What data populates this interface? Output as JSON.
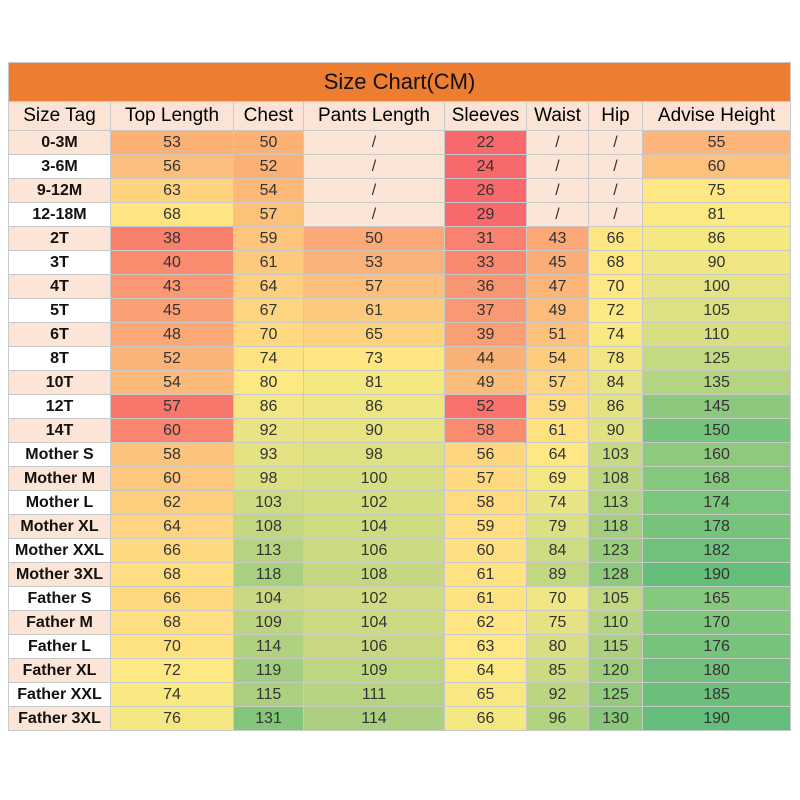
{
  "title": "Size Chart(CM)",
  "headers": [
    "Size Tag",
    "Top Length",
    "Chest",
    "Pants Length",
    "Sleeves",
    "Waist",
    "Hip",
    "Advise Height"
  ],
  "rows": [
    {
      "cells": [
        "0-3M",
        "53",
        "50",
        "/",
        "22",
        "/",
        "/",
        "55"
      ],
      "colors": [
        "#fce4d6",
        "#fbb074",
        "#fbb074",
        "#fce4d6",
        "#f8696b",
        "#fce4d6",
        "#fce4d6",
        "#fcb57b"
      ]
    },
    {
      "cells": [
        "3-6M",
        "56",
        "52",
        "/",
        "24",
        "/",
        "/",
        "60"
      ],
      "colors": [
        "#ffffff",
        "#fcbe7c",
        "#fbb074",
        "#fce4d6",
        "#f8696b",
        "#fce4d6",
        "#fce4d6",
        "#fdc07d"
      ]
    },
    {
      "cells": [
        "9-12M",
        "63",
        "54",
        "/",
        "26",
        "/",
        "/",
        "75"
      ],
      "colors": [
        "#fce4d6",
        "#fed37f",
        "#fcb877",
        "#fce4d6",
        "#f8696b",
        "#fce4d6",
        "#fce4d6",
        "#ffe883"
      ]
    },
    {
      "cells": [
        "12-18M",
        "68",
        "57",
        "/",
        "29",
        "/",
        "/",
        "81"
      ],
      "colors": [
        "#ffffff",
        "#ffe483",
        "#fcc27a",
        "#fce4d6",
        "#f8696b",
        "#fce4d6",
        "#fce4d6",
        "#fbe983"
      ]
    },
    {
      "cells": [
        "2T",
        "38",
        "59",
        "50",
        "31",
        "43",
        "66",
        "86"
      ],
      "colors": [
        "#fce4d6",
        "#f8816d",
        "#fcc47c",
        "#fbaa77",
        "#f8826f",
        "#fba776",
        "#fee683",
        "#f5e883"
      ]
    },
    {
      "cells": [
        "3T",
        "40",
        "61",
        "53",
        "33",
        "45",
        "68",
        "90"
      ],
      "colors": [
        "#ffffff",
        "#f98c6f",
        "#fcc97d",
        "#fbb278",
        "#f98a70",
        "#fbad77",
        "#ffe883",
        "#f0e683"
      ]
    },
    {
      "cells": [
        "4T",
        "43",
        "64",
        "57",
        "36",
        "47",
        "70",
        "100"
      ],
      "colors": [
        "#fce4d6",
        "#fa9873",
        "#fdcf7e",
        "#fcbe7b",
        "#f99672",
        "#fcb578",
        "#ffe883",
        "#e5e383"
      ]
    },
    {
      "cells": [
        "5T",
        "45",
        "67",
        "61",
        "37",
        "49",
        "72",
        "105"
      ],
      "colors": [
        "#ffffff",
        "#fb9f75",
        "#fdd47f",
        "#fdc97d",
        "#f99973",
        "#fcbb79",
        "#fde983",
        "#ddE183"
      ]
    },
    {
      "cells": [
        "6T",
        "48",
        "70",
        "65",
        "39",
        "51",
        "74",
        "110"
      ],
      "colors": [
        "#fce4d6",
        "#fba877",
        "#fed980",
        "#fdd37f",
        "#fa9e74",
        "#fcc27b",
        "#f9e983",
        "#d7df82"
      ]
    },
    {
      "cells": [
        "8T",
        "52",
        "74",
        "73",
        "44",
        "54",
        "78",
        "125"
      ],
      "colors": [
        "#ffffff",
        "#fbb478",
        "#ffe382",
        "#ffe683",
        "#fab176",
        "#fdcc7d",
        "#f2e683",
        "#c4da81"
      ]
    },
    {
      "cells": [
        "10T",
        "54",
        "80",
        "81",
        "49",
        "57",
        "84",
        "135"
      ],
      "colors": [
        "#fce4d6",
        "#fbba79",
        "#fde983",
        "#f4e883",
        "#fbbc79",
        "#fed580",
        "#e8e483",
        "#b3d480"
      ]
    },
    {
      "cells": [
        "12T",
        "57",
        "86",
        "86",
        "52",
        "59",
        "86",
        "145"
      ],
      "colors": [
        "#ffffff",
        "#f8776c",
        "#f3e683",
        "#eee683",
        "#f8716b",
        "#fedb81",
        "#e4e383",
        "#8cc97e"
      ]
    },
    {
      "cells": [
        "14T",
        "60",
        "92",
        "90",
        "58",
        "61",
        "90",
        "150"
      ],
      "colors": [
        "#fce4d6",
        "#f9856e",
        "#e9e383",
        "#e8e483",
        "#f98c6f",
        "#ffe182",
        "#dfe183",
        "#76c37c"
      ]
    },
    {
      "cells": [
        "Mother S",
        "58",
        "93",
        "98",
        "56",
        "64",
        "103",
        "160"
      ],
      "colors": [
        "#ffffff",
        "#fcc37c",
        "#e5e283",
        "#dde083",
        "#fed680",
        "#ffe883",
        "#c8da81",
        "#8dca7e"
      ]
    },
    {
      "cells": [
        "Mother M",
        "60",
        "98",
        "100",
        "57",
        "69",
        "108",
        "168"
      ],
      "colors": [
        "#fce4d6",
        "#fdc87d",
        "#dcdf82",
        "#d8df82",
        "#fed980",
        "#f5e883",
        "#bbd680",
        "#84c77d"
      ]
    },
    {
      "cells": [
        "Mother L",
        "62",
        "103",
        "102",
        "58",
        "74",
        "113",
        "174"
      ],
      "colors": [
        "#ffffff",
        "#fdce7e",
        "#cfdb81",
        "#d3dd82",
        "#fedb81",
        "#e8e483",
        "#b0d37f",
        "#7bc57d"
      ]
    },
    {
      "cells": [
        "Mother XL",
        "64",
        "108",
        "104",
        "59",
        "79",
        "118",
        "178"
      ],
      "colors": [
        "#fce4d6",
        "#fed480",
        "#c3d781",
        "#cfdb81",
        "#fede81",
        "#dbe082",
        "#a5cf7f",
        "#76c37c"
      ]
    },
    {
      "cells": [
        "Mother XXL",
        "66",
        "113",
        "106",
        "60",
        "84",
        "123",
        "182"
      ],
      "colors": [
        "#ffffff",
        "#fed980",
        "#b5d380",
        "#cadb81",
        "#fee082",
        "#cedc81",
        "#9acc7e",
        "#70c17c"
      ]
    },
    {
      "cells": [
        "Mother 3XL",
        "68",
        "118",
        "108",
        "61",
        "89",
        "128",
        "190"
      ],
      "colors": [
        "#fce4d6",
        "#ffde82",
        "#a9d07f",
        "#c5d881",
        "#ffe382",
        "#c1d881",
        "#8fc97e",
        "#66be7b"
      ]
    },
    {
      "cells": [
        "Father S",
        "66",
        "104",
        "102",
        "61",
        "70",
        "105",
        "165"
      ],
      "colors": [
        "#ffffff",
        "#fed980",
        "#cad981",
        "#d1dc82",
        "#ffe382",
        "#f0e683",
        "#c1d881",
        "#86c87d"
      ]
    },
    {
      "cells": [
        "Father M",
        "68",
        "109",
        "104",
        "62",
        "75",
        "110",
        "170"
      ],
      "colors": [
        "#fce4d6",
        "#ffde82",
        "#bdd580",
        "#ccda81",
        "#ffe583",
        "#e4e283",
        "#b6d580",
        "#7fc67d"
      ]
    },
    {
      "cells": [
        "Father L",
        "70",
        "114",
        "106",
        "63",
        "80",
        "115",
        "176"
      ],
      "colors": [
        "#ffffff",
        "#ffe382",
        "#b0d27f",
        "#c7d881",
        "#ffe783",
        "#d8df82",
        "#abd17f",
        "#77c37c"
      ]
    },
    {
      "cells": [
        "Father XL",
        "72",
        "119",
        "109",
        "64",
        "85",
        "120",
        "180"
      ],
      "colors": [
        "#fce4d6",
        "#fde883",
        "#a4ce7f",
        "#bdd680",
        "#fde983",
        "#ccdb81",
        "#a0cd7e",
        "#71c17c"
      ]
    },
    {
      "cells": [
        "Father XXL",
        "74",
        "115",
        "111",
        "65",
        "92",
        "125",
        "185"
      ],
      "colors": [
        "#ffffff",
        "#f8e983",
        "#adcf7f",
        "#b6d480",
        "#f8e883",
        "#bcd680",
        "#94ca7e",
        "#6bbf7b"
      ]
    },
    {
      "cells": [
        "Father 3XL",
        "76",
        "131",
        "114",
        "66",
        "96",
        "130",
        "190"
      ],
      "colors": [
        "#fce4d6",
        "#f3e683",
        "#85c67d",
        "#acd07f",
        "#f4e883",
        "#b2d380",
        "#89c77d",
        "#63be7b"
      ]
    }
  ]
}
